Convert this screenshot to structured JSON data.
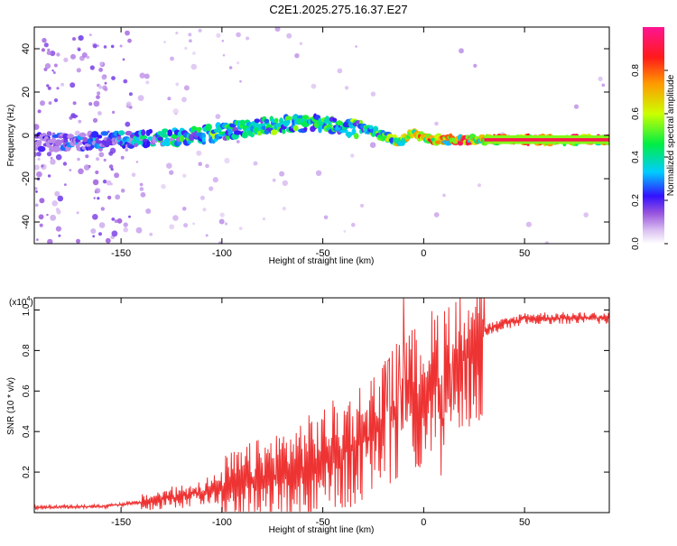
{
  "title": "C2E1.2025.275.16.37.E27",
  "chart_data": [
    {
      "type": "heatmap",
      "xlabel": "Height of straight line (km)",
      "ylabel": "Frequency (Hz)",
      "xlim": [
        -193,
        92
      ],
      "ylim": [
        -50,
        50
      ],
      "xticks": [
        -150,
        -100,
        -50,
        0,
        50
      ],
      "yticks": [
        -40,
        -20,
        0,
        20,
        40
      ],
      "colorbar": {
        "label": "Normalized spectral amplitude",
        "range": [
          0,
          1
        ],
        "ticks": [
          "0.0",
          "0.2",
          "0.4",
          "0.6",
          "0.8"
        ],
        "colors": [
          "#ffffff",
          "#cc99ee",
          "#7733cc",
          "#1a1aff",
          "#00e5ff",
          "#00ee44",
          "#e6ff00",
          "#ff9900",
          "#ff1a1a",
          "#ff1493"
        ]
      },
      "ridge": [
        {
          "x": -190,
          "y": -3,
          "amp": 0.2
        },
        {
          "x": -170,
          "y": -3,
          "amp": 0.3
        },
        {
          "x": -150,
          "y": -2,
          "amp": 0.35
        },
        {
          "x": -130,
          "y": -1,
          "amp": 0.45
        },
        {
          "x": -110,
          "y": 0,
          "amp": 0.5
        },
        {
          "x": -90,
          "y": 3,
          "amp": 0.55
        },
        {
          "x": -70,
          "y": 5,
          "amp": 0.55
        },
        {
          "x": -50,
          "y": 6,
          "amp": 0.5
        },
        {
          "x": -40,
          "y": 4,
          "amp": 0.5
        },
        {
          "x": -25,
          "y": 2,
          "amp": 0.6
        },
        {
          "x": -12,
          "y": -3,
          "amp": 0.7
        },
        {
          "x": -5,
          "y": 1,
          "amp": 0.8
        },
        {
          "x": 5,
          "y": -2,
          "amp": 0.85
        },
        {
          "x": 20,
          "y": -2,
          "amp": 0.9
        },
        {
          "x": 40,
          "y": -2,
          "amp": 0.95
        },
        {
          "x": 90,
          "y": -2,
          "amp": 1.0
        }
      ]
    },
    {
      "type": "line",
      "xlabel": "Height of straight line (km)",
      "ylabel": "SNR (10 * v/v)",
      "y_multiplier_label": "(x10",
      "y_multiplier_exp": "4",
      "y_multiplier_close": ")",
      "xlim": [
        -193,
        92
      ],
      "ylim": [
        0,
        1.06
      ],
      "xticks": [
        -150,
        -100,
        -50,
        0,
        50
      ],
      "yticks": [
        "0.2",
        "0.4",
        "0.6",
        "0.8",
        "1.0"
      ],
      "ytick_values": [
        0.2,
        0.4,
        0.6,
        0.8,
        1.0
      ],
      "color": "#ee3333",
      "envelope": {
        "x": [
          -193,
          -160,
          -140,
          -120,
          -100,
          -80,
          -60,
          -40,
          -30,
          -20,
          -10,
          0,
          10,
          20,
          30,
          50,
          92
        ],
        "y": [
          0.025,
          0.03,
          0.05,
          0.08,
          0.12,
          0.17,
          0.22,
          0.3,
          0.35,
          0.43,
          0.52,
          0.6,
          0.68,
          0.8,
          0.9,
          0.96,
          0.96
        ]
      }
    }
  ]
}
